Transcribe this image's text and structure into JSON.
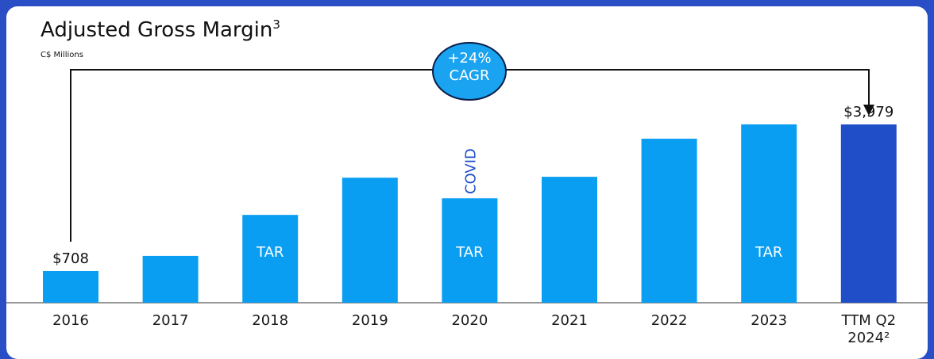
{
  "chart_data": {
    "type": "bar",
    "title": "Adjusted Gross Margin",
    "title_footnote": "3",
    "subtitle": "C$ Millions",
    "categories": [
      "2016",
      "2017",
      "2018",
      "2019",
      "2020",
      "2021",
      "2022",
      "2023",
      "TTM Q2 2024²"
    ],
    "values": [
      708,
      1045,
      1960,
      2790,
      2330,
      2810,
      3660,
      3980,
      3979
    ],
    "value_labels": [
      "$708",
      null,
      null,
      null,
      null,
      null,
      null,
      null,
      "$3,979"
    ],
    "colors": [
      "#0a9ef2",
      "#0a9ef2",
      "#0a9ef2",
      "#0a9ef2",
      "#0a9ef2",
      "#0a9ef2",
      "#0a9ef2",
      "#0a9ef2",
      "#1f4ec8"
    ],
    "ylim": [
      0,
      4200
    ],
    "bar_annotations": [
      {
        "category": "2018",
        "text": "TAR"
      },
      {
        "category": "2020",
        "text": "TAR"
      },
      {
        "category": "2023",
        "text": "TAR"
      }
    ],
    "covid_annotation": {
      "category": "2020",
      "text": "COVID"
    },
    "cagr_label": "+24% CAGR"
  }
}
